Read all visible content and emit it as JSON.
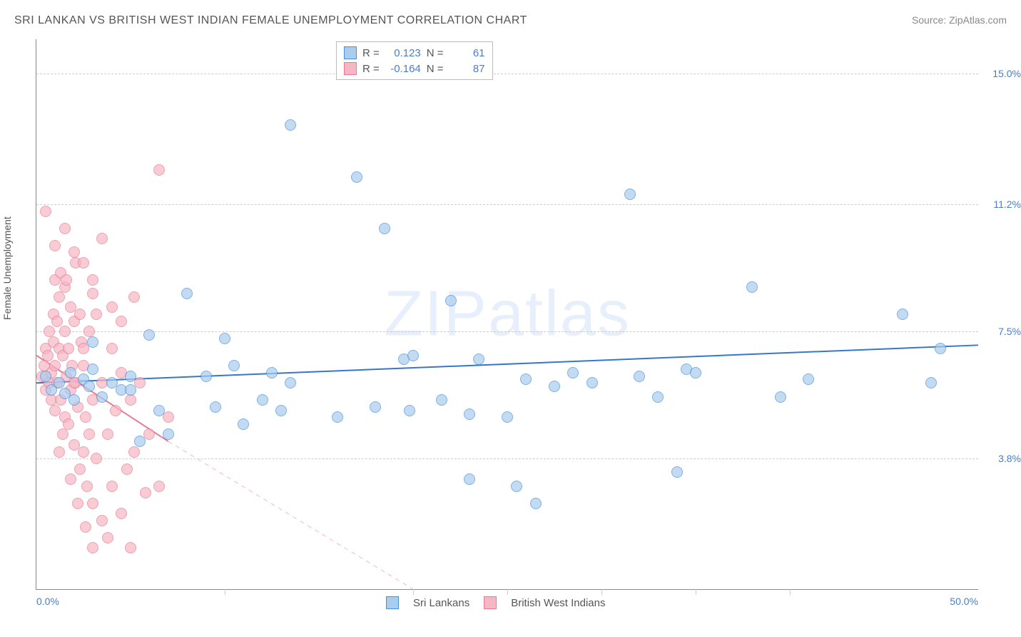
{
  "header": {
    "title": "SRI LANKAN VS BRITISH WEST INDIAN FEMALE UNEMPLOYMENT CORRELATION CHART",
    "source": "Source: ZipAtlas.com"
  },
  "axes": {
    "y_label": "Female Unemployment",
    "x_label": "",
    "xlim": [
      0,
      50
    ],
    "ylim": [
      0,
      16
    ],
    "x_ticks": [
      {
        "v": 0,
        "label": "0.0%"
      },
      {
        "v": 10,
        "label": ""
      },
      {
        "v": 20,
        "label": ""
      },
      {
        "v": 25,
        "label": ""
      },
      {
        "v": 30,
        "label": ""
      },
      {
        "v": 35,
        "label": ""
      },
      {
        "v": 40,
        "label": ""
      },
      {
        "v": 50,
        "label": "50.0%"
      }
    ],
    "y_ticks": [
      {
        "v": 3.8,
        "label": "3.8%"
      },
      {
        "v": 7.5,
        "label": "7.5%"
      },
      {
        "v": 11.2,
        "label": "11.2%"
      },
      {
        "v": 15.0,
        "label": "15.0%"
      }
    ],
    "x_tick_color": "#4a7cc9",
    "y_tick_color": "#4a7cc9",
    "grid_color": "#cccccc"
  },
  "watermark": {
    "text_a": "ZIP",
    "text_b": "atlas",
    "color": "rgba(100,149,237,0.15)",
    "fontsize": 90
  },
  "series": {
    "blue": {
      "name": "Sri Lankans",
      "fill": "#a9cdee",
      "stroke": "#4a90d9",
      "R_label": "R =",
      "R": "0.123",
      "N_label": "N =",
      "N": "61",
      "value_color": "#4a7cc9",
      "trend": {
        "x1": 0,
        "y1": 6.0,
        "x2": 50,
        "y2": 7.1,
        "color": "#3777c9",
        "width": 2,
        "dash": "none"
      },
      "points": [
        [
          0.5,
          6.2
        ],
        [
          0.8,
          5.8
        ],
        [
          1.2,
          6.0
        ],
        [
          1.5,
          5.7
        ],
        [
          1.8,
          6.3
        ],
        [
          2.0,
          5.5
        ],
        [
          2.5,
          6.1
        ],
        [
          2.8,
          5.9
        ],
        [
          3.0,
          6.4
        ],
        [
          3.5,
          5.6
        ],
        [
          4.0,
          6.0
        ],
        [
          4.5,
          5.8
        ],
        [
          5.0,
          6.2
        ],
        [
          5.0,
          5.8
        ],
        [
          5.5,
          4.3
        ],
        [
          6.0,
          7.4
        ],
        [
          3.0,
          7.2
        ],
        [
          6.5,
          5.2
        ],
        [
          7.0,
          4.5
        ],
        [
          8.0,
          8.6
        ],
        [
          9.0,
          6.2
        ],
        [
          9.5,
          5.3
        ],
        [
          10.0,
          7.3
        ],
        [
          10.5,
          6.5
        ],
        [
          11.0,
          4.8
        ],
        [
          12.0,
          5.5
        ],
        [
          12.5,
          6.3
        ],
        [
          13.0,
          5.2
        ],
        [
          13.5,
          6.0
        ],
        [
          13.5,
          13.5
        ],
        [
          16.0,
          5.0
        ],
        [
          17.0,
          12.0
        ],
        [
          18.0,
          5.3
        ],
        [
          18.5,
          10.5
        ],
        [
          19.5,
          6.7
        ],
        [
          19.8,
          5.2
        ],
        [
          20.0,
          6.8
        ],
        [
          21.5,
          5.5
        ],
        [
          22.0,
          8.4
        ],
        [
          23.0,
          5.1
        ],
        [
          23.5,
          6.7
        ],
        [
          25.0,
          5.0
        ],
        [
          25.5,
          3.0
        ],
        [
          23.0,
          3.2
        ],
        [
          26.0,
          6.1
        ],
        [
          26.5,
          2.5
        ],
        [
          27.5,
          5.9
        ],
        [
          28.5,
          6.3
        ],
        [
          29.5,
          6.0
        ],
        [
          31.5,
          11.5
        ],
        [
          32.0,
          6.2
        ],
        [
          33.0,
          5.6
        ],
        [
          34.0,
          3.4
        ],
        [
          34.5,
          6.4
        ],
        [
          35.0,
          6.3
        ],
        [
          38.0,
          8.8
        ],
        [
          39.5,
          5.6
        ],
        [
          41.0,
          6.1
        ],
        [
          46.0,
          8.0
        ],
        [
          47.5,
          6.0
        ],
        [
          48.0,
          7.0
        ]
      ]
    },
    "pink": {
      "name": "British West Indians",
      "fill": "#f6b6c4",
      "stroke": "#e77b94",
      "R_label": "R =",
      "R": "-0.164",
      "N_label": "N =",
      "N": "87",
      "value_color": "#4a7cc9",
      "trend_solid": {
        "x1": 0,
        "y1": 6.8,
        "x2": 7,
        "y2": 4.3,
        "color": "#e77b94",
        "width": 2
      },
      "trend_dash": {
        "x1": 7,
        "y1": 4.3,
        "x2": 20,
        "y2": 0.0,
        "color": "#f6b6c4",
        "width": 1
      },
      "points": [
        [
          0.3,
          6.2
        ],
        [
          0.4,
          6.5
        ],
        [
          0.5,
          7.0
        ],
        [
          0.5,
          5.8
        ],
        [
          0.6,
          6.8
        ],
        [
          0.7,
          6.0
        ],
        [
          0.7,
          7.5
        ],
        [
          0.8,
          5.5
        ],
        [
          0.8,
          6.3
        ],
        [
          0.9,
          8.0
        ],
        [
          0.9,
          7.2
        ],
        [
          1.0,
          6.5
        ],
        [
          1.0,
          9.0
        ],
        [
          1.0,
          5.2
        ],
        [
          1.1,
          7.8
        ],
        [
          1.1,
          6.0
        ],
        [
          1.2,
          8.5
        ],
        [
          1.2,
          7.0
        ],
        [
          1.3,
          5.5
        ],
        [
          1.3,
          9.2
        ],
        [
          1.4,
          6.8
        ],
        [
          1.4,
          4.5
        ],
        [
          1.5,
          8.8
        ],
        [
          1.5,
          7.5
        ],
        [
          1.5,
          5.0
        ],
        [
          1.6,
          6.2
        ],
        [
          1.6,
          9.0
        ],
        [
          1.7,
          7.0
        ],
        [
          1.7,
          4.8
        ],
        [
          1.8,
          8.2
        ],
        [
          1.8,
          5.8
        ],
        [
          1.9,
          6.5
        ],
        [
          2.0,
          7.8
        ],
        [
          2.0,
          4.2
        ],
        [
          2.1,
          9.5
        ],
        [
          2.1,
          6.0
        ],
        [
          2.2,
          5.3
        ],
        [
          2.3,
          8.0
        ],
        [
          2.3,
          3.5
        ],
        [
          2.4,
          7.2
        ],
        [
          2.5,
          4.0
        ],
        [
          2.5,
          6.5
        ],
        [
          2.6,
          5.0
        ],
        [
          2.7,
          3.0
        ],
        [
          2.8,
          7.5
        ],
        [
          2.8,
          4.5
        ],
        [
          3.0,
          2.5
        ],
        [
          3.0,
          5.5
        ],
        [
          3.2,
          8.0
        ],
        [
          3.2,
          3.8
        ],
        [
          3.5,
          6.0
        ],
        [
          3.5,
          2.0
        ],
        [
          3.8,
          4.5
        ],
        [
          3.8,
          1.5
        ],
        [
          4.0,
          7.0
        ],
        [
          4.0,
          3.0
        ],
        [
          4.2,
          5.2
        ],
        [
          4.5,
          6.3
        ],
        [
          4.5,
          2.2
        ],
        [
          4.8,
          3.5
        ],
        [
          5.0,
          5.5
        ],
        [
          5.0,
          1.2
        ],
        [
          5.2,
          4.0
        ],
        [
          5.5,
          6.0
        ],
        [
          5.8,
          2.8
        ],
        [
          6.0,
          4.5
        ],
        [
          6.5,
          3.0
        ],
        [
          7.0,
          5.0
        ],
        [
          0.5,
          11.0
        ],
        [
          1.0,
          10.0
        ],
        [
          1.5,
          10.5
        ],
        [
          2.0,
          9.8
        ],
        [
          2.5,
          9.5
        ],
        [
          3.0,
          9.0
        ],
        [
          3.5,
          10.2
        ],
        [
          1.2,
          4.0
        ],
        [
          1.8,
          3.2
        ],
        [
          2.2,
          2.5
        ],
        [
          2.6,
          1.8
        ],
        [
          3.0,
          1.2
        ],
        [
          6.5,
          12.2
        ],
        [
          3.0,
          8.6
        ],
        [
          4.0,
          8.2
        ],
        [
          4.5,
          7.8
        ],
        [
          5.2,
          8.5
        ],
        [
          2.0,
          6.0
        ],
        [
          2.5,
          7.0
        ]
      ]
    }
  },
  "legend": {
    "item1": "Sri Lankans",
    "item2": "British West Indians"
  }
}
